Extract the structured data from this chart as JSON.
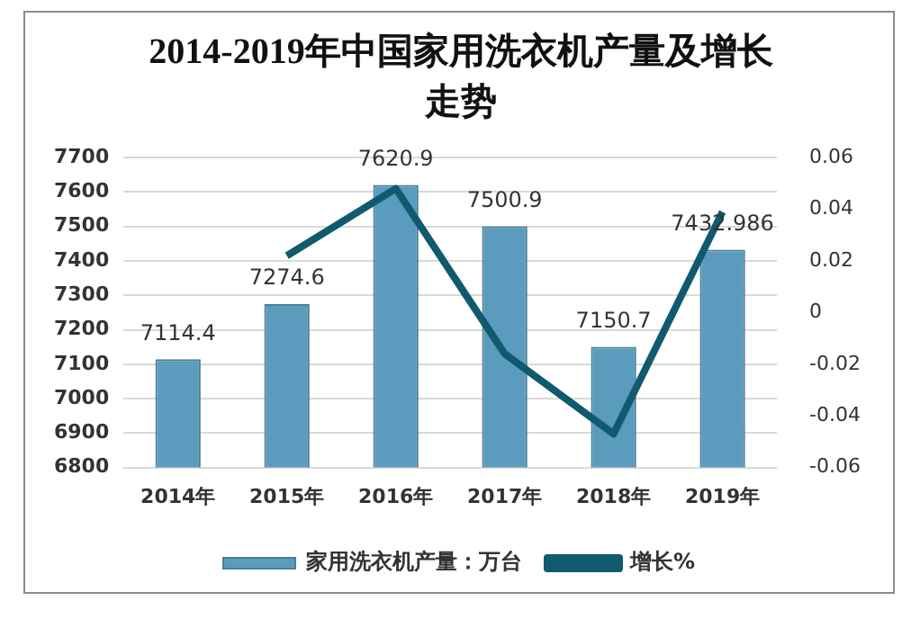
{
  "chart_data": {
    "type": "bar",
    "title": "2014-2019年中国家用洗衣机产量及增长走势",
    "categories": [
      "2014年",
      "2015年",
      "2016年",
      "2017年",
      "2018年",
      "2019年"
    ],
    "series": [
      {
        "name": "家用洗衣机产量：万台",
        "color": "#5b9bbd",
        "values": [
          7114.4,
          7274.6,
          7620.9,
          7500.9,
          7150.7,
          7432.986
        ],
        "value_labels": [
          "7114.4",
          "7274.6",
          "7620.9",
          "7500.9",
          "7150.7",
          "7432.986"
        ]
      },
      {
        "name": "增长%",
        "type": "line",
        "axis": "y2",
        "color": "#0f5a6e",
        "values": [
          null,
          0.022,
          0.048,
          -0.016,
          -0.047,
          0.039
        ]
      }
    ],
    "ylim": [
      6800,
      7700
    ],
    "yticks": [
      6800,
      6900,
      7000,
      7100,
      7200,
      7300,
      7400,
      7500,
      7600,
      7700
    ],
    "y2lim": [
      -0.06,
      0.06
    ],
    "y2ticks": [
      -0.06,
      -0.04,
      -0.02,
      0,
      0.02,
      0.04,
      0.06
    ],
    "grid": "y",
    "legend": "bottom",
    "marker": "none",
    "line_style": "solid"
  }
}
